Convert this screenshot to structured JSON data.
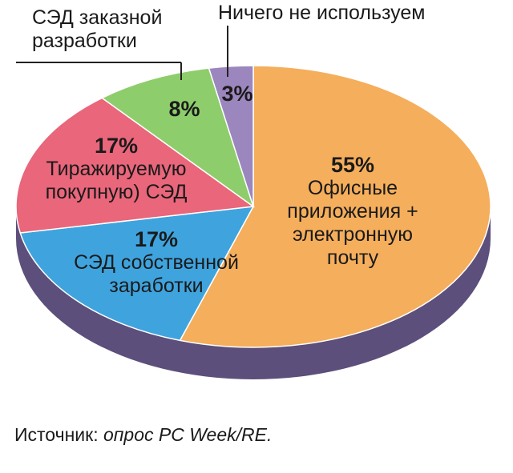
{
  "chart_data": {
    "type": "pie",
    "categories": [
      "Офисные\nприложения +\nэлектронную почту",
      "СЭД собственной\nзаработки",
      "Тиражируемую\nпокупную) СЭД",
      "СЭД заказной\nразработки",
      "Ничего не используем"
    ],
    "values": [
      55,
      17,
      17,
      8,
      3
    ],
    "value_labels": [
      "55%",
      "17%",
      "17%",
      "8%",
      "3%"
    ],
    "colors": [
      "#f5ae5c",
      "#3fa4de",
      "#e9667b",
      "#8ecd6b",
      "#9c86be"
    ],
    "source_label": "Источник:",
    "source_text": "опрос PC Week/RE."
  }
}
